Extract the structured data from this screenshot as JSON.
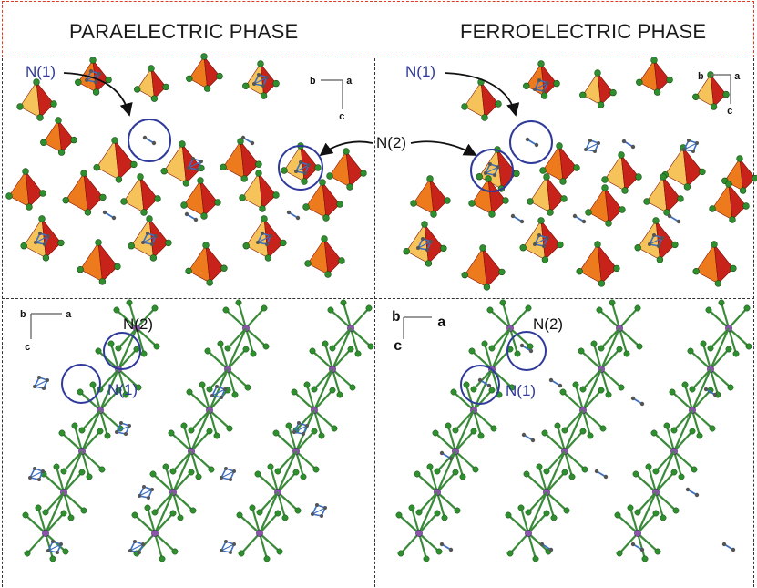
{
  "titles": {
    "paraelectric": "PARAELECTRIC PHASE",
    "ferroelectric": "FERROELECTRIC PHASE"
  },
  "labels": {
    "n1": "N(1)",
    "n2": "N(2)"
  },
  "axes": {
    "a": "a",
    "b": "b",
    "c": "c"
  },
  "colors": {
    "header_border": "#e23a1f",
    "polyhedron_dark": "#c8231a",
    "polyhedron_mid": "#ee7a1e",
    "polyhedron_light": "#f6c35a",
    "ligand_atom": "#2f8f2f",
    "metal_atom": "#8a55a8",
    "cation_blue": "#3a6fc4",
    "circle_outline": "#2f3a9a"
  }
}
